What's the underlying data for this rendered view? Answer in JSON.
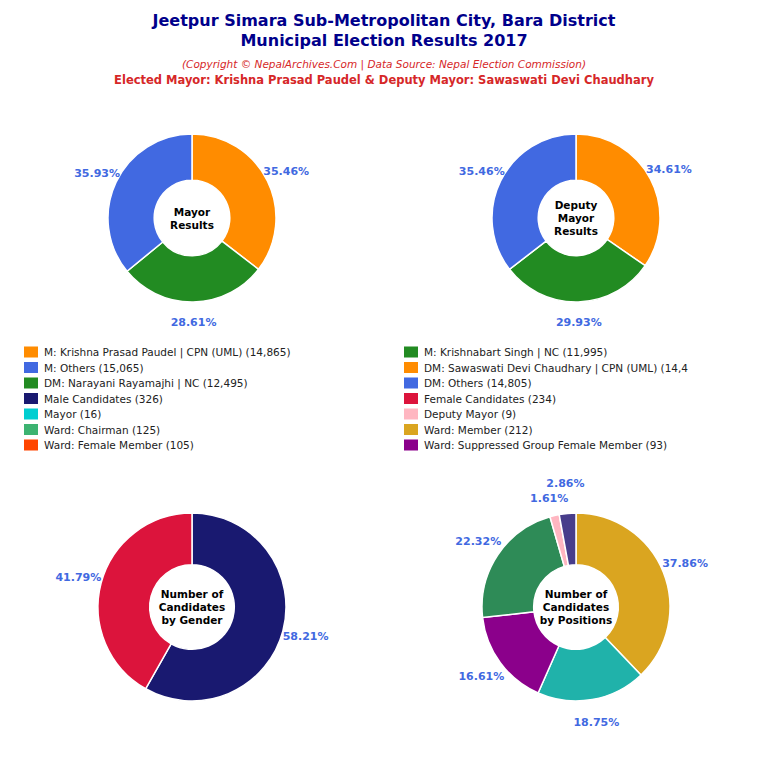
{
  "title": [
    "Jeetpur Simara Sub-Metropolitan City, Bara District",
    "Municipal Election Results 2017"
  ],
  "subtitle": [
    "(Copyright © NepalArchives.Com | Data Source: Nepal Election Commission)",
    "Elected Mayor: Krishna Prasad Paudel & Deputy Mayor: Sawaswati Devi Chaudhary"
  ],
  "chart_data": [
    {
      "type": "pie",
      "title": "Mayor\nResults",
      "values": [
        35.46,
        28.61,
        35.93
      ],
      "value_labels": [
        "35.46%",
        "28.61%",
        "35.93%"
      ],
      "colors": [
        "#FF8C00",
        "#228B22",
        "#4169E1"
      ],
      "data_labels": true
    },
    {
      "type": "pie",
      "title": "Deputy\nMayor\nResults",
      "values": [
        34.61,
        29.93,
        35.46
      ],
      "value_labels": [
        "34.61%",
        "29.93%",
        "35.46%"
      ],
      "colors": [
        "#FF8C00",
        "#228B22",
        "#4169E1"
      ],
      "data_labels": true
    },
    {
      "type": "legend",
      "categories": [
        "M: Krishna Prasad Paudel | CPN (UML) (14,865)",
        "M: Others (15,065)",
        "DM: Narayani Rayamajhi | NC (12,495)",
        "Male Candidates (326)",
        "Mayor (16)",
        "Ward: Chairman (125)",
        "Ward: Female Member (105)",
        "M: Krishnabart Singh | NC (11,995)",
        "DM: Sawaswati Devi Chaudhary | CPN (UML) (14,4",
        "DM: Others (14,805)",
        "Female Candidates (234)",
        "Deputy Mayor (9)",
        "Ward: Member (212)",
        "Ward: Suppressed Group Female Member (93)"
      ],
      "colors": [
        "#FF8C00",
        "#4169E1",
        "#228B22",
        "#191970",
        "#00CED1",
        "#3CB371",
        "#FF4500",
        "#228B22",
        "#FF8C00",
        "#4169E1",
        "#DC143C",
        "#FFB6C1",
        "#DAA520",
        "#8B008B"
      ]
    },
    {
      "type": "pie",
      "title": "Number of\nCandidates\nby Gender",
      "values": [
        58.21,
        41.79
      ],
      "value_labels": [
        "58.21%",
        "41.79%"
      ],
      "colors": [
        "#191970",
        "#DC143C"
      ],
      "data_labels": true
    },
    {
      "type": "pie",
      "title": "Number of\nCandidates\nby Positions",
      "values": [
        37.86,
        18.75,
        16.61,
        22.32,
        1.61,
        2.86
      ],
      "value_labels": [
        "37.86%",
        "18.75%",
        "16.61%",
        "22.32%",
        "1.61%",
        "2.86%"
      ],
      "colors": [
        "#DAA520",
        "#20B2AA",
        "#8B008B",
        "#2E8B57",
        "#FFB6C1",
        "#483D8B"
      ],
      "data_labels": true
    }
  ]
}
